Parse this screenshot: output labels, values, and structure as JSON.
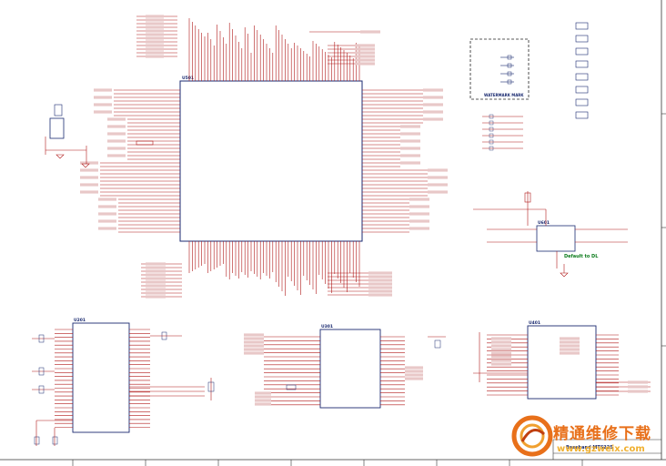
{
  "sheet": {
    "note_default": "Default to DL",
    "watermark_box_title": "WATERMARK MARK",
    "title_block": "Baseband MT6225",
    "watermark_logo_text": "精通维修下载",
    "watermark_url": "www.gzweix.com"
  },
  "chips": {
    "main": "U501",
    "left_bottom": "U201",
    "center_bottom": "U301",
    "right_bottom": "U401",
    "switch": "U601"
  },
  "colors": {
    "wire": "#b01818",
    "body": "#1a2a70",
    "note": "#0a7a1a",
    "watermark": "#e8701a"
  }
}
